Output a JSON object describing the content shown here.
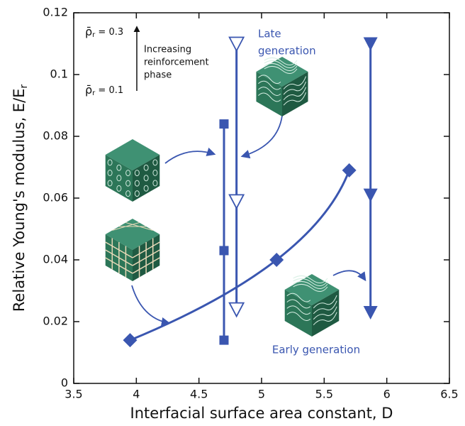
{
  "chart_data": {
    "type": "line",
    "xlabel": "Interfacial surface area constant, D",
    "ylabel": {
      "main": "Relative Young's modulus, E/E",
      "sub": "r"
    },
    "xlim": [
      3.5,
      6.5
    ],
    "xticks": [
      3.5,
      4,
      4.5,
      5,
      5.5,
      6,
      6.5
    ],
    "ylim": [
      0,
      0.12
    ],
    "yticks": [
      0,
      0.02,
      0.04,
      0.06,
      0.08,
      0.1,
      0.12
    ],
    "color": "#3a56b0",
    "series": [
      {
        "marker": "square",
        "color": "#3a56b0",
        "x": [
          4.7,
          4.7,
          4.7
        ],
        "values": [
          0.084,
          0.043,
          0.014
        ]
      },
      {
        "marker": "triangle-down-open",
        "color": "#3a56b0",
        "x": [
          4.8,
          4.8,
          4.8
        ],
        "values": [
          0.11,
          0.059,
          0.024
        ]
      },
      {
        "marker": "triangle-down",
        "color": "#3a56b0",
        "x": [
          5.87,
          5.87,
          5.87
        ],
        "values": [
          0.11,
          0.061,
          0.023
        ]
      },
      {
        "marker": "diamond",
        "color": "#3a56b0",
        "curve": "smooth",
        "x": [
          3.95,
          5.12,
          5.7
        ],
        "values": [
          0.014,
          0.04,
          0.069
        ]
      }
    ],
    "annotations": {
      "rho_high": {
        "symbol": "ρ̄",
        "sub": "r",
        "text": " = 0.3"
      },
      "rho_low": {
        "symbol": "ρ̄",
        "sub": "r",
        "text": " = 0.1"
      },
      "reinforcement": [
        "Increasing",
        "reinforcement",
        "phase"
      ],
      "late": [
        "Late",
        "generation"
      ],
      "early": "Early generation"
    }
  }
}
